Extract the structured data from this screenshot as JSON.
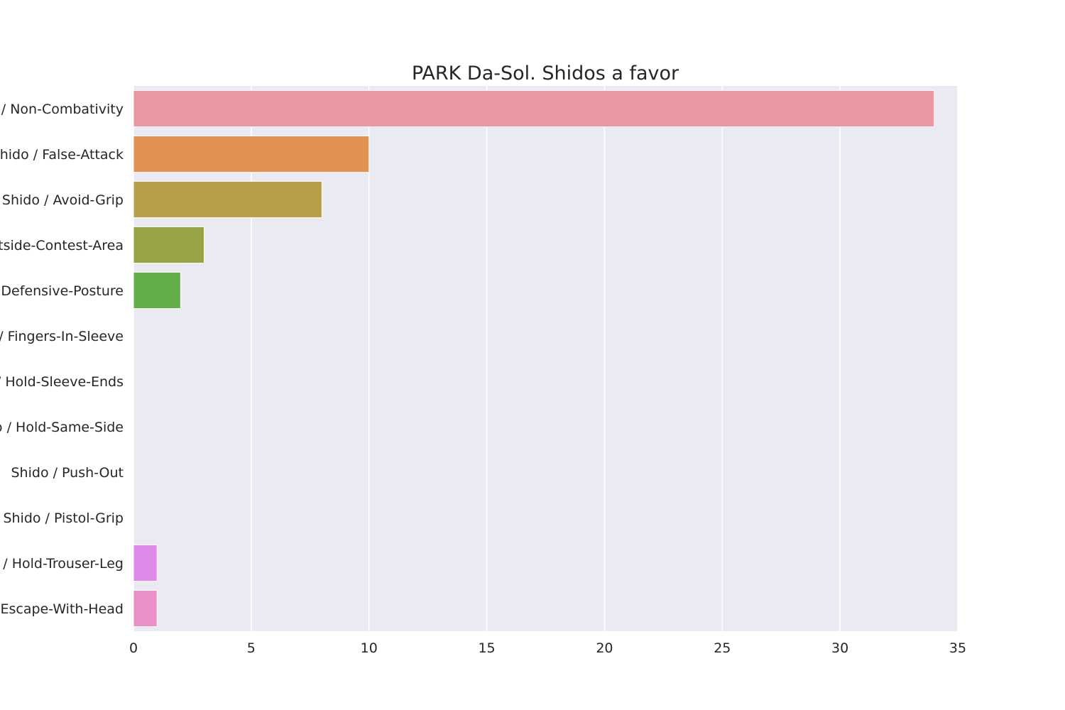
{
  "chart_data": {
    "type": "bar",
    "orientation": "horizontal",
    "title": "PARK Da-Sol. Shidos a favor",
    "xlabel": "",
    "ylabel": "",
    "xlim": [
      0,
      35
    ],
    "xticks": [
      0,
      5,
      10,
      15,
      20,
      25,
      30,
      35
    ],
    "grid": true,
    "legend": "none",
    "categories": [
      "Shido / Non-Combativity",
      "Shido / False-Attack",
      "Shido / Avoid-Grip",
      "Shido / Outside-Contest-Area",
      "Shido / Defensive-Posture",
      "Shido / Fingers-In-Sleeve",
      "Shido / Hold-Sleeve-Ends",
      "Shido / Hold-Same-Side",
      "Shido / Push-Out",
      "Shido / Pistol-Grip",
      "Shido / Hold-Trouser-Leg",
      "Shido / Escape-With-Head"
    ],
    "values": [
      34,
      10,
      8,
      3,
      2,
      0,
      0,
      0,
      0,
      0,
      1,
      1
    ],
    "colors": [
      "#ea96a3",
      "#e19153",
      "#b89d4a",
      "#98a246",
      "#62ae48",
      "#4eae82",
      "#50aa9c",
      "#53a6b0",
      "#57a1c9",
      "#9a9ee7",
      "#df8ae8",
      "#e990c8"
    ],
    "background_color": "#eaeaf2",
    "grid_color": "#ffffff"
  }
}
